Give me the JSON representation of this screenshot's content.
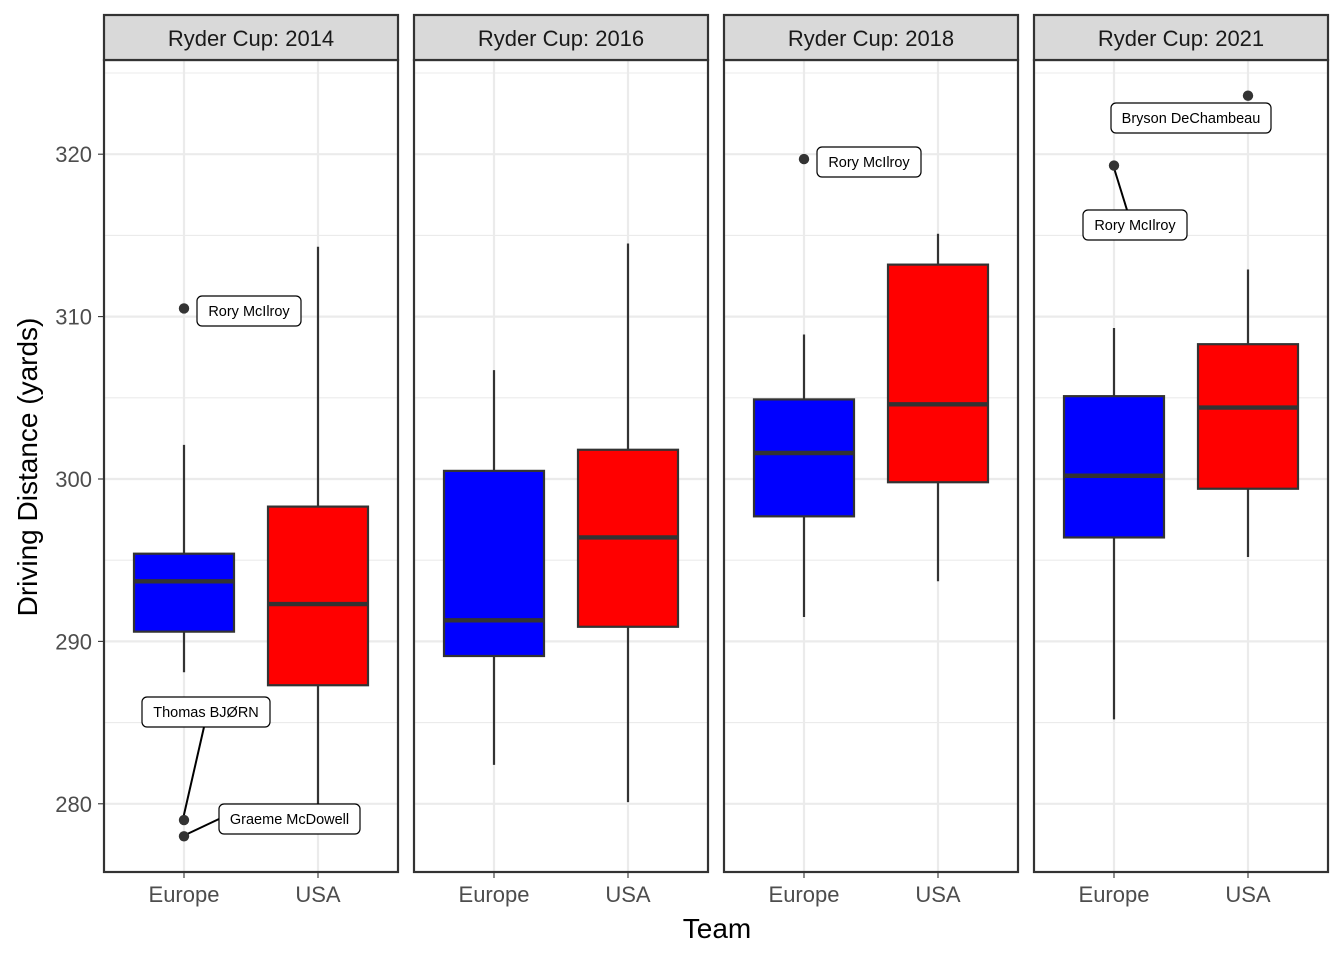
{
  "chart_data": {
    "type": "boxplot",
    "xlabel": "Team",
    "ylabel": "Driving Distance (yards)",
    "ylim": [
      275.8,
      325.8
    ],
    "y_ticks": [
      280,
      290,
      300,
      310,
      320
    ],
    "categories": [
      "Europe",
      "USA"
    ],
    "colors": {
      "Europe": "#0000ff",
      "USA": "#ff0000"
    },
    "grid": true,
    "panels": [
      {
        "title": "Ryder Cup: 2014",
        "boxes": [
          {
            "team": "Europe",
            "whisker_low": 288.1,
            "q1": 290.6,
            "median": 293.7,
            "q3": 295.4,
            "whisker_high": 302.1
          },
          {
            "team": "USA",
            "whisker_low": 279.9,
            "q1": 287.3,
            "median": 292.3,
            "q3": 298.3,
            "whisker_high": 314.3
          }
        ],
        "outliers": [
          {
            "team": "Europe",
            "y": 310.5,
            "label": "Rory McIlroy"
          },
          {
            "team": "Europe",
            "y": 279.0,
            "label": "Thomas BJØRN"
          },
          {
            "team": "Europe",
            "y": 278.0,
            "label": "Graeme McDowell"
          }
        ]
      },
      {
        "title": "Ryder Cup: 2016",
        "boxes": [
          {
            "team": "Europe",
            "whisker_low": 282.4,
            "q1": 289.1,
            "median": 291.3,
            "q3": 300.5,
            "whisker_high": 306.7
          },
          {
            "team": "USA",
            "whisker_low": 280.1,
            "q1": 290.9,
            "median": 296.4,
            "q3": 301.8,
            "whisker_high": 314.5
          }
        ],
        "outliers": []
      },
      {
        "title": "Ryder Cup: 2018",
        "boxes": [
          {
            "team": "Europe",
            "whisker_low": 291.5,
            "q1": 297.7,
            "median": 301.6,
            "q3": 304.9,
            "whisker_high": 308.9
          },
          {
            "team": "USA",
            "whisker_low": 293.7,
            "q1": 299.8,
            "median": 304.6,
            "q3": 313.2,
            "whisker_high": 315.1
          }
        ],
        "outliers": [
          {
            "team": "Europe",
            "y": 319.7,
            "label": "Rory McIlroy"
          }
        ]
      },
      {
        "title": "Ryder Cup: 2021",
        "boxes": [
          {
            "team": "Europe",
            "whisker_low": 285.2,
            "q1": 296.4,
            "median": 300.2,
            "q3": 305.1,
            "whisker_high": 309.3
          },
          {
            "team": "USA",
            "whisker_low": 295.2,
            "q1": 299.4,
            "median": 304.4,
            "q3": 308.3,
            "whisker_high": 312.9
          }
        ],
        "outliers": [
          {
            "team": "USA",
            "y": 323.6,
            "label": "Bryson DeChambeau"
          },
          {
            "team": "Europe",
            "y": 319.3,
            "label": "Rory McIlroy"
          }
        ]
      }
    ]
  }
}
